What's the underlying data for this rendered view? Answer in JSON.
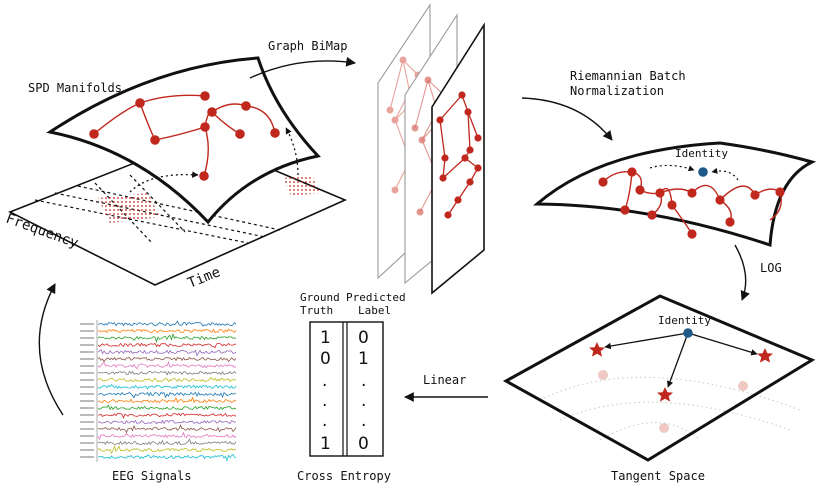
{
  "labels": {
    "spd_manifolds": "SPD Manifolds",
    "frequency": "Frequency",
    "time": "Time",
    "graph_bimap": "Graph BiMap",
    "rbn_line1": "Riemannian Batch",
    "rbn_line2": "Normalization",
    "identity_top": "Identity",
    "log": "LOG",
    "identity_tangent": "Identity",
    "tangent_space": "Tangent Space",
    "linear": "Linear",
    "ground_line1": "Ground",
    "ground_line2": "Truth",
    "predicted_line1": "Predicted",
    "predicted_line2": "Label",
    "cross_entropy": "Cross Entropy",
    "eeg_signals": "EEG Signals"
  },
  "table": {
    "ground_truth": [
      "1",
      "0",
      ".",
      ".",
      ".",
      "1"
    ],
    "predicted": [
      "0",
      "1",
      ".",
      ".",
      ".",
      "0"
    ]
  },
  "eeg_channel_colors": [
    "#1f77b4",
    "#ff7f0e",
    "#2ca02c",
    "#d62728",
    "#9467bd",
    "#8c564b",
    "#e377c2",
    "#7f7f7f",
    "#bcbd22",
    "#17becf",
    "#1f77b4",
    "#ff7f0e",
    "#2ca02c",
    "#d62728",
    "#9467bd",
    "#8c564b",
    "#e377c2",
    "#7f7f7f",
    "#bcbd22",
    "#17becf"
  ],
  "colors": {
    "node_red": "#c0281e",
    "node_pink": "#e8a39c",
    "identity_blue": "#1d5a8a",
    "star_red": "#c0281e"
  }
}
